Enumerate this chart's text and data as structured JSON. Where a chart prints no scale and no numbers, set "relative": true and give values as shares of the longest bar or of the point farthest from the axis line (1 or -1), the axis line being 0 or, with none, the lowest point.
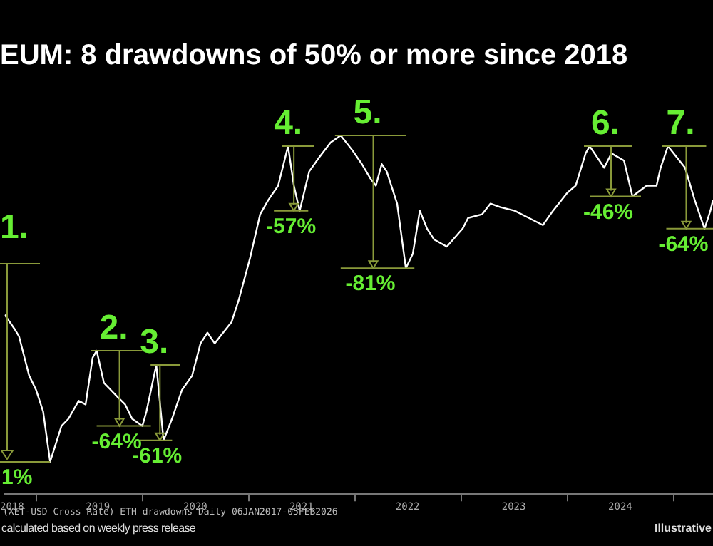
{
  "chart_data": {
    "type": "line",
    "title": "EUM: 8 drawdowns of 50% or more since 2018",
    "relative": true,
    "legend": false,
    "grid": false,
    "marker": "none",
    "line_style": "solid",
    "xlim": [
      "2018-09-15",
      "2025-05-16"
    ],
    "xticks": [
      {
        "value": "2018-10-10",
        "label": "2018"
      },
      {
        "value": "2019-01-01",
        "label": null
      },
      {
        "value": "2019-08-01",
        "label": "2019"
      },
      {
        "value": "2020-01-01",
        "label": null
      },
      {
        "value": "2020-07-01",
        "label": "2020"
      },
      {
        "value": "2021-01-01",
        "label": null
      },
      {
        "value": "2021-07-01",
        "label": "2021"
      },
      {
        "value": "2022-01-01",
        "label": null
      },
      {
        "value": "2022-07-01",
        "label": "2022"
      },
      {
        "value": "2023-01-01",
        "label": null
      },
      {
        "value": "2023-07-01",
        "label": "2023"
      },
      {
        "value": "2024-01-01",
        "label": null
      },
      {
        "value": "2024-07-01",
        "label": "2024"
      },
      {
        "value": "2025-01-01",
        "label": null
      }
    ],
    "x": [
      "2018-09-15",
      "2018-10-19",
      "2018-11-03",
      "2018-12-08",
      "2019-01-01",
      "2019-01-25",
      "2019-02-18",
      "2019-03-29",
      "2019-04-22",
      "2019-05-27",
      "2019-06-20",
      "2019-07-14",
      "2019-07-28",
      "2019-08-22",
      "2019-09-15",
      "2019-10-09",
      "2019-11-03",
      "2019-11-27",
      "2020-01-01",
      "2020-01-15",
      "2020-02-18",
      "2020-03-14",
      "2020-04-12",
      "2020-05-16",
      "2020-06-20",
      "2020-07-19",
      "2020-08-12",
      "2020-09-06",
      "2020-09-25",
      "2020-11-03",
      "2020-11-27",
      "2021-01-06",
      "2021-02-09",
      "2021-03-09",
      "2021-04-12",
      "2021-05-16",
      "2021-06-05",
      "2021-06-25",
      "2021-07-28",
      "2021-09-01",
      "2021-10-09",
      "2021-11-13",
      "2021-12-22",
      "2022-01-25",
      "2022-02-23",
      "2022-03-14",
      "2022-04-03",
      "2022-04-20",
      "2022-05-26",
      "2022-06-25",
      "2022-07-19",
      "2022-08-12",
      "2022-09-06",
      "2022-09-30",
      "2022-11-13",
      "2023-01-06",
      "2023-01-25",
      "2023-03-14",
      "2023-04-12",
      "2023-05-16",
      "2023-07-04",
      "2023-08-22",
      "2023-10-09",
      "2023-11-13",
      "2024-01-01",
      "2024-01-30",
      "2024-03-04",
      "2024-03-18",
      "2024-05-07",
      "2024-06-01",
      "2024-07-14",
      "2024-08-12",
      "2024-09-30",
      "2024-11-03",
      "2024-11-17",
      "2024-12-12",
      "2025-02-09",
      "2025-03-14",
      "2025-04-17",
      "2025-05-07",
      "2025-05-16"
    ],
    "series": [
      {
        "color": "#ffffff",
        "values": [
          0.5,
          0.46,
          0.44,
          0.33,
          0.29,
          0.23,
          0.09,
          0.19,
          0.21,
          0.26,
          0.25,
          0.38,
          0.4,
          0.31,
          0.29,
          0.27,
          0.25,
          0.21,
          0.19,
          0.23,
          0.36,
          0.15,
          0.21,
          0.29,
          0.33,
          0.42,
          0.45,
          0.42,
          0.44,
          0.48,
          0.54,
          0.66,
          0.78,
          0.82,
          0.86,
          0.97,
          0.86,
          0.79,
          0.9,
          0.94,
          0.98,
          1,
          0.96,
          0.92,
          0.88,
          0.86,
          0.92,
          0.9,
          0.81,
          0.63,
          0.67,
          0.79,
          0.74,
          0.71,
          0.69,
          0.74,
          0.77,
          0.78,
          0.81,
          0.8,
          0.79,
          0.77,
          0.75,
          0.79,
          0.84,
          0.86,
          0.95,
          0.97,
          0.91,
          0.95,
          0.93,
          0.83,
          0.86,
          0.86,
          0.91,
          0.97,
          0.91,
          0.82,
          0.74,
          0.79,
          0.82
        ]
      }
    ],
    "annotations": [
      "1.",
      {
        "text": "1%",
        "x": "2019-02-18",
        "y": 0.09
      },
      {
        "text": "2.",
        "x": "2019-07-28",
        "y": 0.4
      },
      {
        "text": "-64%",
        "x": "2020-01-01",
        "y": 0.19
      },
      {
        "text": "3.",
        "x": "2020-02-18",
        "y": 0.36
      },
      {
        "text": "-61%",
        "x": "2020-03-14",
        "y": 0.15
      },
      {
        "text": "4.",
        "x": "2021-05-16",
        "y": 0.97
      },
      {
        "text": "-57%",
        "x": "2021-06-25",
        "y": 0.79
      },
      {
        "text": "5.",
        "x": "2021-11-13",
        "y": 1
      },
      {
        "text": "-81%",
        "x": "2022-06-25",
        "y": 0.63
      },
      {
        "text": "6.",
        "x": "2024-03-18",
        "y": 0.97
      },
      {
        "text": "-46%",
        "x": "2024-08-12",
        "y": 0.83
      },
      {
        "text": "7.",
        "x": "2024-12-12",
        "y": 0.97
      },
      {
        "text": "-64%",
        "x": "2025-04-17",
        "y": 0.74
      },
      "(XET-USD Cross Rate) ETH drawdowns Daily 06JAN2017-05FEB2026",
      "calculated based on weekly press release",
      "Illustrative"
    ]
  }
}
